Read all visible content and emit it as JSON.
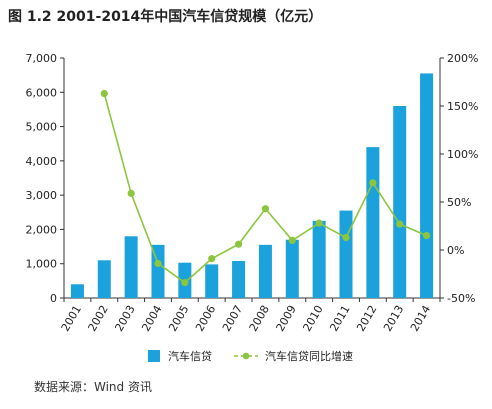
{
  "chart_data": {
    "type": "bar",
    "title": "图 1.2 2001-2014年中国汽车信贷规模（亿元）",
    "categories": [
      "2001",
      "2002",
      "2003",
      "2004",
      "2005",
      "2006",
      "2007",
      "2008",
      "2009",
      "2010",
      "2011",
      "2012",
      "2013",
      "2014"
    ],
    "series": [
      {
        "name": "汽车信贷",
        "type": "bar",
        "axis": "left",
        "color": "#1ba1dc",
        "values": [
          400,
          1100,
          1800,
          1550,
          1030,
          980,
          1080,
          1550,
          1700,
          2250,
          2550,
          4400,
          5600,
          6550
        ]
      },
      {
        "name": "汽车信贷同比增速",
        "type": "line",
        "axis": "right",
        "unit": "%",
        "color": "#8cc63f",
        "values": [
          null,
          163,
          59,
          -14,
          -34,
          -9,
          6,
          43,
          10,
          28,
          13,
          70,
          27,
          15
        ]
      }
    ],
    "y_left": {
      "ylim": [
        0,
        7000
      ],
      "ticks": [
        0,
        1000,
        2000,
        3000,
        4000,
        5000,
        6000,
        7000
      ],
      "tick_labels": [
        "0",
        "1,000",
        "2,000",
        "3,000",
        "4,000",
        "5,000",
        "6,000",
        "7,000"
      ]
    },
    "y_right": {
      "ylim": [
        -50,
        200
      ],
      "ticks": [
        -50,
        0,
        50,
        100,
        150,
        200
      ],
      "tick_labels": [
        "-50%",
        "0%",
        "50%",
        "100%",
        "150%",
        "200%"
      ]
    },
    "grid": false,
    "legend_position": "bottom"
  },
  "footer": {
    "source": "数据来源：Wind 资讯"
  }
}
